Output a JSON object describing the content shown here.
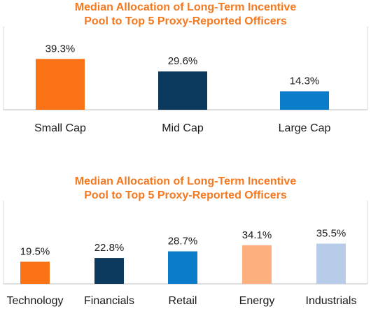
{
  "chart_data": [
    {
      "type": "bar",
      "title_lines": [
        "Median Allocation of Long-Term Incentive",
        "Pool to Top 5 Proxy-Reported Officers"
      ],
      "categories": [
        "Small Cap",
        "Mid Cap",
        "Large Cap"
      ],
      "values": [
        39.3,
        29.6,
        14.3
      ],
      "value_labels": [
        "39.3%",
        "29.6%",
        "14.3%"
      ],
      "colors": [
        "#f97316",
        "#0b3a5e",
        "#0b7cc9"
      ],
      "ylim": [
        0,
        50
      ],
      "xlabel": "",
      "ylabel": "",
      "grid": false
    },
    {
      "type": "bar",
      "title_lines": [
        "Median Allocation of Long-Term Incentive",
        "Pool to Top 5 Proxy-Reported Officers"
      ],
      "categories": [
        "Technology",
        "Financials",
        "Retail",
        "Energy",
        "Industrials"
      ],
      "values": [
        19.5,
        22.8,
        28.7,
        34.1,
        35.5
      ],
      "value_labels": [
        "19.5%",
        "22.8%",
        "28.7%",
        "34.1%",
        "35.5%"
      ],
      "colors": [
        "#f97316",
        "#0b3a5e",
        "#0b7cc9",
        "#fdb07e",
        "#b7cce9"
      ],
      "ylim": [
        0,
        50
      ],
      "xlabel": "",
      "ylabel": "",
      "grid": false
    }
  ]
}
